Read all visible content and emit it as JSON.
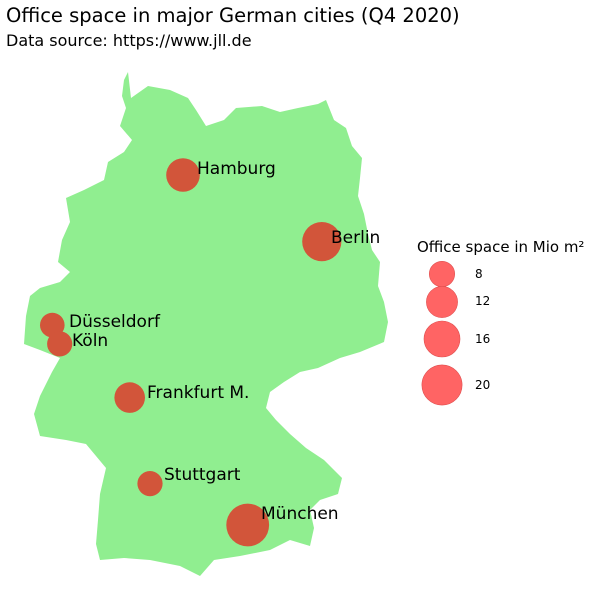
{
  "header": {
    "title": "Office space in major German cities (Q4 2020)",
    "subtitle": "Data source: https://www.jll.de"
  },
  "colors": {
    "land": "#90ee90",
    "bubble": "#d2553a",
    "legend_bubble": "#ff6464"
  },
  "legend": {
    "title": "Office space in Mio m²",
    "entries": [
      {
        "label": "8",
        "value": 8
      },
      {
        "label": "12",
        "value": 12
      },
      {
        "label": "16",
        "value": 16
      },
      {
        "label": "20",
        "value": 20
      }
    ]
  },
  "cities": [
    {
      "name": "Hamburg",
      "lon": 9.99,
      "lat": 53.55,
      "value": 14
    },
    {
      "name": "Berlin",
      "lon": 13.4,
      "lat": 52.52,
      "value": 19
    },
    {
      "name": "Düsseldorf",
      "lon": 6.78,
      "lat": 51.23,
      "value": 7.5
    },
    {
      "name": "Köln",
      "lon": 6.96,
      "lat": 50.94,
      "value": 7.8
    },
    {
      "name": "Frankfurt M.",
      "lon": 8.68,
      "lat": 50.11,
      "value": 11.5
    },
    {
      "name": "Stuttgart",
      "lon": 9.18,
      "lat": 48.78,
      "value": 7.9
    },
    {
      "name": "München",
      "lon": 11.58,
      "lat": 48.14,
      "value": 22.7
    }
  ]
}
